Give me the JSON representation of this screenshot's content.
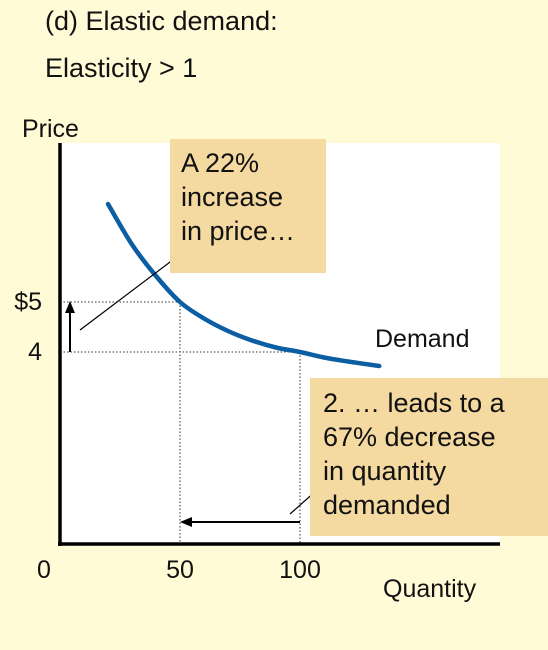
{
  "heading": {
    "line1": "(d) Elastic demand:",
    "line2": "Elasticity > 1"
  },
  "chart_data": {
    "type": "line",
    "title": "(d) Elastic demand: Elasticity > 1",
    "xlabel": "Quantity",
    "ylabel": "Price",
    "x_ticks": [
      "0",
      "50",
      "100"
    ],
    "y_ticks": [
      "$5",
      "4"
    ],
    "series": [
      {
        "name": "Demand",
        "color": "#0c5ea3",
        "x": [
          20,
          30,
          40,
          50,
          60,
          70,
          80,
          90,
          100,
          110,
          120,
          133
        ],
        "y": [
          6.96,
          6.15,
          5.52,
          5.0,
          4.67,
          4.42,
          4.23,
          4.09,
          4.0,
          3.89,
          3.81,
          3.72
        ]
      }
    ],
    "marked_points": [
      {
        "x": 50,
        "y": 5
      },
      {
        "x": 100,
        "y": 4
      }
    ],
    "annotations": {
      "price_change": [
        "A  22%",
        "increase",
        "in price…"
      ],
      "quantity_change": [
        "2. … leads to a",
        "67% decrease",
        "in quantity",
        "demanded"
      ]
    },
    "colors": {
      "background": "#fffbd6",
      "plot_area": "#ffffff",
      "callout": "#f4d9a0",
      "curve": "#0c5ea3"
    }
  }
}
